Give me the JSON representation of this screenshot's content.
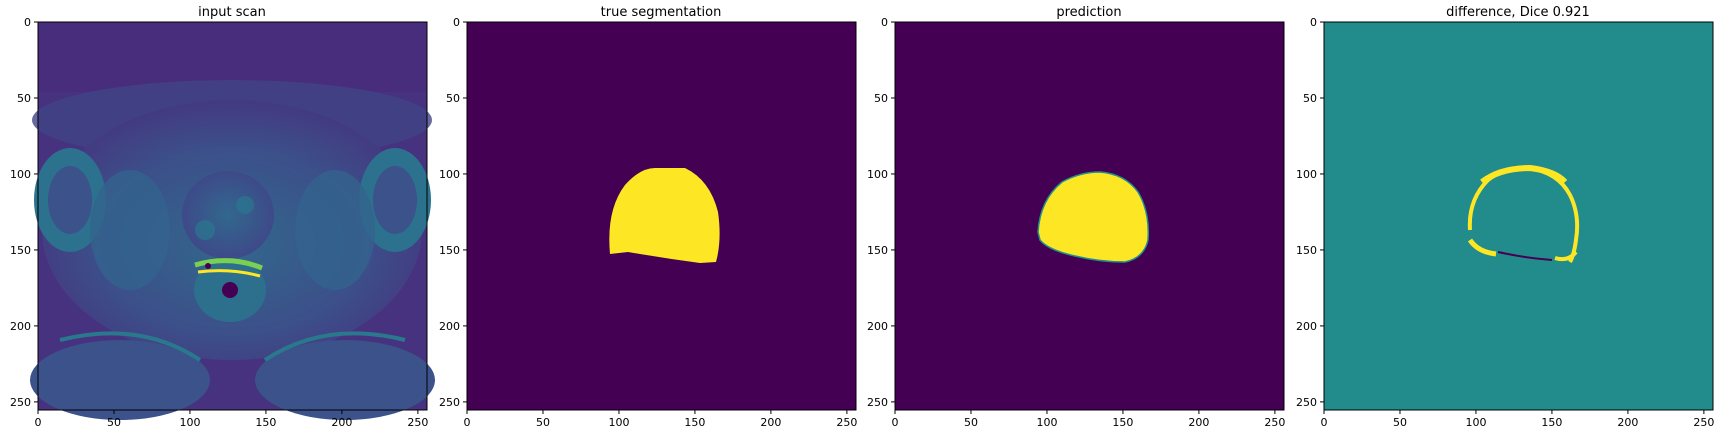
{
  "figure": {
    "panels": [
      {
        "title": "input scan",
        "kind": "mri"
      },
      {
        "title": "true segmentation",
        "kind": "mask-true"
      },
      {
        "title": "prediction",
        "kind": "mask-pred"
      },
      {
        "title": "difference, Dice 0.921",
        "kind": "difference"
      }
    ],
    "x_ticks": [
      "0",
      "50",
      "100",
      "150",
      "200",
      "250"
    ],
    "y_ticks": [
      "0",
      "50",
      "100",
      "150",
      "200",
      "250"
    ],
    "colors": {
      "viridis_dark": "#440154",
      "viridis_mid": "#21908c",
      "viridis_teal": "#228b8c",
      "viridis_yellow": "#fde725",
      "axis": "#000000"
    }
  }
}
